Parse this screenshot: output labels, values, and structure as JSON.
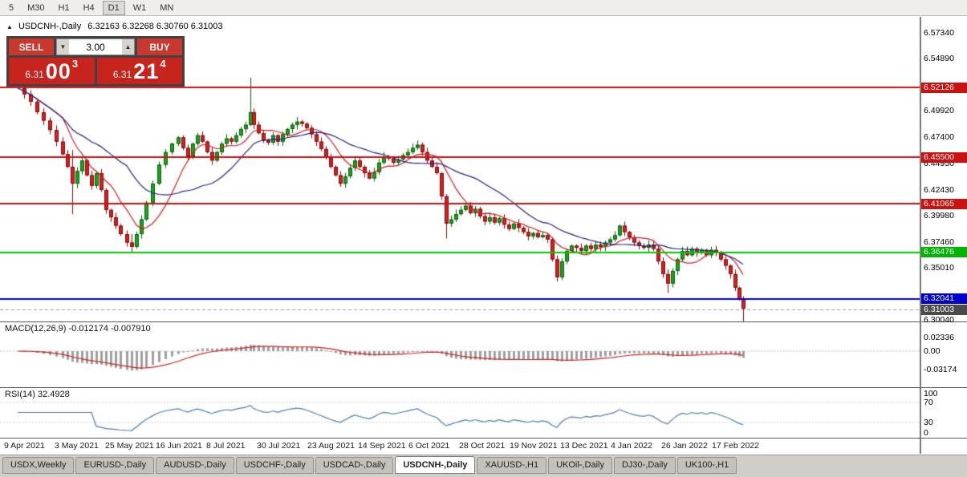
{
  "toolbar": {
    "timeframes": [
      "5",
      "M30",
      "H1",
      "H4",
      "D1",
      "W1",
      "MN"
    ],
    "active": "D1"
  },
  "chart": {
    "header": {
      "symbol_period": "USDCNH-,Daily",
      "ohlc": "6.32163 6.32268 6.30760 6.31003"
    }
  },
  "icons": {
    "panel_collapse": "▲",
    "volume_decrease": "▼",
    "volume_increase": "▲"
  },
  "trade_panel": {
    "sell_label": "SELL",
    "buy_label": "BUY",
    "volume": "3.00",
    "bid": {
      "prefix": "6.31",
      "big": "00",
      "sup": "3"
    },
    "ask": {
      "prefix": "6.31",
      "big": "21",
      "sup": "4"
    }
  },
  "price_scale": {
    "plain": [
      "6.57340",
      "6.54890",
      "6.49920",
      "6.47400",
      "6.44950",
      "6.42430",
      "6.39980",
      "6.37460",
      "6.35010",
      "6.30040"
    ],
    "badges": [
      {
        "text": "6.52126",
        "color": "#cc1111"
      },
      {
        "text": "6.45500",
        "color": "#cc1111"
      },
      {
        "text": "6.41065",
        "color": "#cc1111"
      },
      {
        "text": "6.36476",
        "color": "#00b400"
      },
      {
        "text": "6.32041",
        "color": "#0000cc"
      },
      {
        "text": "6.31003",
        "color": "#4a4a4a"
      }
    ]
  },
  "macd": {
    "label": "MACD(12,26,9) -0.012174 -0.007910",
    "axis": [
      "0.02336",
      "0.00",
      "-0.03174"
    ]
  },
  "rsi": {
    "label": "RSI(14) 32.4928",
    "axis": [
      "100",
      "70",
      "30",
      "0"
    ]
  },
  "dates": [
    "9 Apr 2021",
    "3 May 2021",
    "25 May 2021",
    "16 Jun 2021",
    "8 Jul 2021",
    "30 Jul 2021",
    "23 Aug 2021",
    "14 Sep 2021",
    "6 Oct 2021",
    "28 Oct 2021",
    "19 Nov 2021",
    "13 Dec 2021",
    "4 Jan 2022",
    "26 Jan 2022",
    "17 Feb 2022"
  ],
  "tabs": [
    {
      "label": "USDX,Weekly",
      "active": false
    },
    {
      "label": "EURUSD-,Daily",
      "active": false
    },
    {
      "label": "AUDUSD-,Daily",
      "active": false
    },
    {
      "label": "USDCHF-,Daily",
      "active": false
    },
    {
      "label": "USDCAD-,Daily",
      "active": false
    },
    {
      "label": "USDCNH-,Daily",
      "active": true
    },
    {
      "label": "XAUUSD-,H1",
      "active": false
    },
    {
      "label": "UKOil-,Daily",
      "active": false
    },
    {
      "label": "DJ30-,Daily",
      "active": false
    },
    {
      "label": "UK100-,H1",
      "active": false
    }
  ],
  "chart_data": {
    "type": "candlestick",
    "symbol": "USDCNH-",
    "timeframe": "Daily",
    "ohlc_current": {
      "open": 6.32163,
      "high": 6.32268,
      "low": 6.3076,
      "close": 6.31003
    },
    "current_price": 6.31003,
    "y_axis": {
      "price_top": 6.5887,
      "price_bottom": 6.2989
    },
    "hlines": [
      {
        "price": 6.52126,
        "color": "#cc1111",
        "width": 2
      },
      {
        "price": 6.455,
        "color": "#cc1111",
        "width": 2
      },
      {
        "price": 6.41065,
        "color": "#cc1111",
        "width": 2
      },
      {
        "price": 6.36476,
        "color": "#00cc00",
        "width": 2
      },
      {
        "price": 6.32041,
        "color": "#0000d0",
        "width": 2
      }
    ],
    "moving_averages": [
      {
        "period": 8,
        "color": "#d02020"
      },
      {
        "period": 21,
        "color": "#20208f"
      }
    ],
    "colors": {
      "up": "#1fa11f",
      "up_border": "#0a5d0a",
      "down": "#d32020",
      "down_border": "#7e0c0c"
    },
    "macd": {
      "params": [
        12,
        26,
        9
      ],
      "range": [
        -0.0619,
        0.0509
      ],
      "histogram_color": "#a0a0a0",
      "signal_color": "#d02020"
    },
    "rsi": {
      "period": 14,
      "range": [
        0,
        100
      ],
      "levels": [
        70,
        30
      ],
      "color": "#4a7ebb"
    },
    "close_path": [
      [
        22,
        6.521
      ],
      [
        30,
        6.515
      ],
      [
        38,
        6.508
      ],
      [
        46,
        6.498
      ],
      [
        54,
        6.49
      ],
      [
        62,
        6.481
      ],
      [
        70,
        6.47
      ],
      [
        78,
        6.458
      ],
      [
        84,
        6.446
      ],
      [
        90,
        6.43
      ],
      [
        96,
        6.442
      ],
      [
        102,
        6.452
      ],
      [
        108,
        6.438
      ],
      [
        114,
        6.428
      ],
      [
        120,
        6.44
      ],
      [
        126,
        6.424
      ],
      [
        132,
        6.405
      ],
      [
        138,
        6.398
      ],
      [
        144,
        6.39
      ],
      [
        150,
        6.382
      ],
      [
        158,
        6.374
      ],
      [
        164,
        6.37
      ],
      [
        170,
        6.382
      ],
      [
        176,
        6.396
      ],
      [
        182,
        6.412
      ],
      [
        190,
        6.43
      ],
      [
        198,
        6.448
      ],
      [
        206,
        6.46
      ],
      [
        214,
        6.468
      ],
      [
        222,
        6.474
      ],
      [
        228,
        6.464
      ],
      [
        234,
        6.456
      ],
      [
        240,
        6.468
      ],
      [
        246,
        6.476
      ],
      [
        252,
        6.47
      ],
      [
        258,
        6.46
      ],
      [
        264,
        6.452
      ],
      [
        270,
        6.46
      ],
      [
        276,
        6.468
      ],
      [
        282,
        6.473
      ],
      [
        288,
        6.47
      ],
      [
        294,
        6.476
      ],
      [
        300,
        6.482
      ],
      [
        306,
        6.486
      ],
      [
        312,
        6.498
      ],
      [
        316,
        6.486
      ],
      [
        322,
        6.478
      ],
      [
        328,
        6.471
      ],
      [
        334,
        6.469
      ],
      [
        340,
        6.476
      ],
      [
        346,
        6.47
      ],
      [
        352,
        6.477
      ],
      [
        358,
        6.482
      ],
      [
        364,
        6.486
      ],
      [
        370,
        6.489
      ],
      [
        376,
        6.487
      ],
      [
        382,
        6.483
      ],
      [
        388,
        6.477
      ],
      [
        394,
        6.47
      ],
      [
        400,
        6.463
      ],
      [
        406,
        6.455
      ],
      [
        412,
        6.446
      ],
      [
        418,
        6.438
      ],
      [
        424,
        6.43
      ],
      [
        430,
        6.437
      ],
      [
        436,
        6.445
      ],
      [
        442,
        6.452
      ],
      [
        448,
        6.446
      ],
      [
        454,
        6.44
      ],
      [
        460,
        6.435
      ],
      [
        466,
        6.441
      ],
      [
        472,
        6.45
      ],
      [
        478,
        6.456
      ],
      [
        484,
        6.454
      ],
      [
        490,
        6.45
      ],
      [
        496,
        6.453
      ],
      [
        502,
        6.457
      ],
      [
        508,
        6.46
      ],
      [
        514,
        6.464
      ],
      [
        520,
        6.467
      ],
      [
        526,
        6.46
      ],
      [
        532,
        6.452
      ],
      [
        538,
        6.446
      ],
      [
        544,
        6.44
      ],
      [
        550,
        6.418
      ],
      [
        556,
        6.392
      ],
      [
        562,
        6.396
      ],
      [
        568,
        6.401
      ],
      [
        574,
        6.405
      ],
      [
        580,
        6.409
      ],
      [
        586,
        6.402
      ],
      [
        592,
        6.406
      ],
      [
        598,
        6.399
      ],
      [
        604,
        6.394
      ],
      [
        610,
        6.398
      ],
      [
        616,
        6.393
      ],
      [
        622,
        6.397
      ],
      [
        628,
        6.391
      ],
      [
        634,
        6.387
      ],
      [
        640,
        6.392
      ],
      [
        646,
        6.388
      ],
      [
        652,
        6.384
      ],
      [
        658,
        6.38
      ],
      [
        664,
        6.383
      ],
      [
        670,
        6.379
      ],
      [
        676,
        6.381
      ],
      [
        682,
        6.377
      ],
      [
        688,
        6.358
      ],
      [
        694,
        6.341
      ],
      [
        700,
        6.356
      ],
      [
        706,
        6.366
      ],
      [
        712,
        6.371
      ],
      [
        718,
        6.369
      ],
      [
        724,
        6.366
      ],
      [
        730,
        6.371
      ],
      [
        736,
        6.368
      ],
      [
        742,
        6.372
      ],
      [
        748,
        6.37
      ],
      [
        754,
        6.374
      ],
      [
        760,
        6.377
      ],
      [
        766,
        6.381
      ],
      [
        772,
        6.39
      ],
      [
        778,
        6.384
      ],
      [
        784,
        6.379
      ],
      [
        790,
        6.374
      ],
      [
        796,
        6.371
      ],
      [
        802,
        6.369
      ],
      [
        808,
        6.372
      ],
      [
        814,
        6.368
      ],
      [
        820,
        6.356
      ],
      [
        826,
        6.344
      ],
      [
        832,
        6.335
      ],
      [
        838,
        6.347
      ],
      [
        844,
        6.358
      ],
      [
        850,
        6.366
      ],
      [
        856,
        6.362
      ],
      [
        862,
        6.368
      ],
      [
        868,
        6.364
      ],
      [
        874,
        6.367
      ],
      [
        880,
        6.362
      ],
      [
        886,
        6.367
      ],
      [
        892,
        6.364
      ],
      [
        898,
        6.358
      ],
      [
        904,
        6.352
      ],
      [
        910,
        6.344
      ],
      [
        916,
        6.331
      ],
      [
        921,
        6.32
      ],
      [
        926,
        6.311
      ]
    ],
    "wick_overrides": [
      [
        90,
        6.462,
        6.401
      ],
      [
        164,
        6.382,
        6.364
      ],
      [
        312,
        6.531,
        6.486
      ],
      [
        556,
        6.42,
        6.378
      ],
      [
        694,
        6.352,
        6.337
      ],
      [
        832,
        6.345,
        6.326
      ],
      [
        926,
        6.318,
        6.299
      ]
    ]
  }
}
